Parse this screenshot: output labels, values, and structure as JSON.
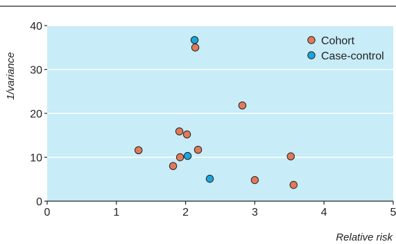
{
  "chart_data": {
    "type": "scatter",
    "xlabel": "Relative risk",
    "ylabel": "1/variance",
    "xlim": [
      0,
      5
    ],
    "ylim": [
      0,
      40
    ],
    "x_ticks": [
      "0",
      "1",
      "2",
      "3",
      "4",
      "5"
    ],
    "y_ticks": [
      "0",
      "10",
      "20",
      "30",
      "40"
    ],
    "grid": "horizontal",
    "legend_position": "top-right",
    "plot_background": "#c8ecf8",
    "series": [
      {
        "name": "Cohort",
        "color": "#e07a5a",
        "points": [
          {
            "x": 1.32,
            "y": 11.6
          },
          {
            "x": 1.82,
            "y": 8.0
          },
          {
            "x": 1.92,
            "y": 10.0
          },
          {
            "x": 1.91,
            "y": 15.9
          },
          {
            "x": 2.02,
            "y": 15.2
          },
          {
            "x": 2.14,
            "y": 35.0
          },
          {
            "x": 2.18,
            "y": 11.7
          },
          {
            "x": 2.82,
            "y": 21.8
          },
          {
            "x": 3.0,
            "y": 4.8
          },
          {
            "x": 3.52,
            "y": 10.2
          },
          {
            "x": 3.56,
            "y": 3.7
          }
        ]
      },
      {
        "name": "Case-control",
        "color": "#1aa6dc",
        "points": [
          {
            "x": 2.13,
            "y": 36.7
          },
          {
            "x": 2.03,
            "y": 10.3
          },
          {
            "x": 2.35,
            "y": 5.1
          }
        ]
      }
    ]
  }
}
